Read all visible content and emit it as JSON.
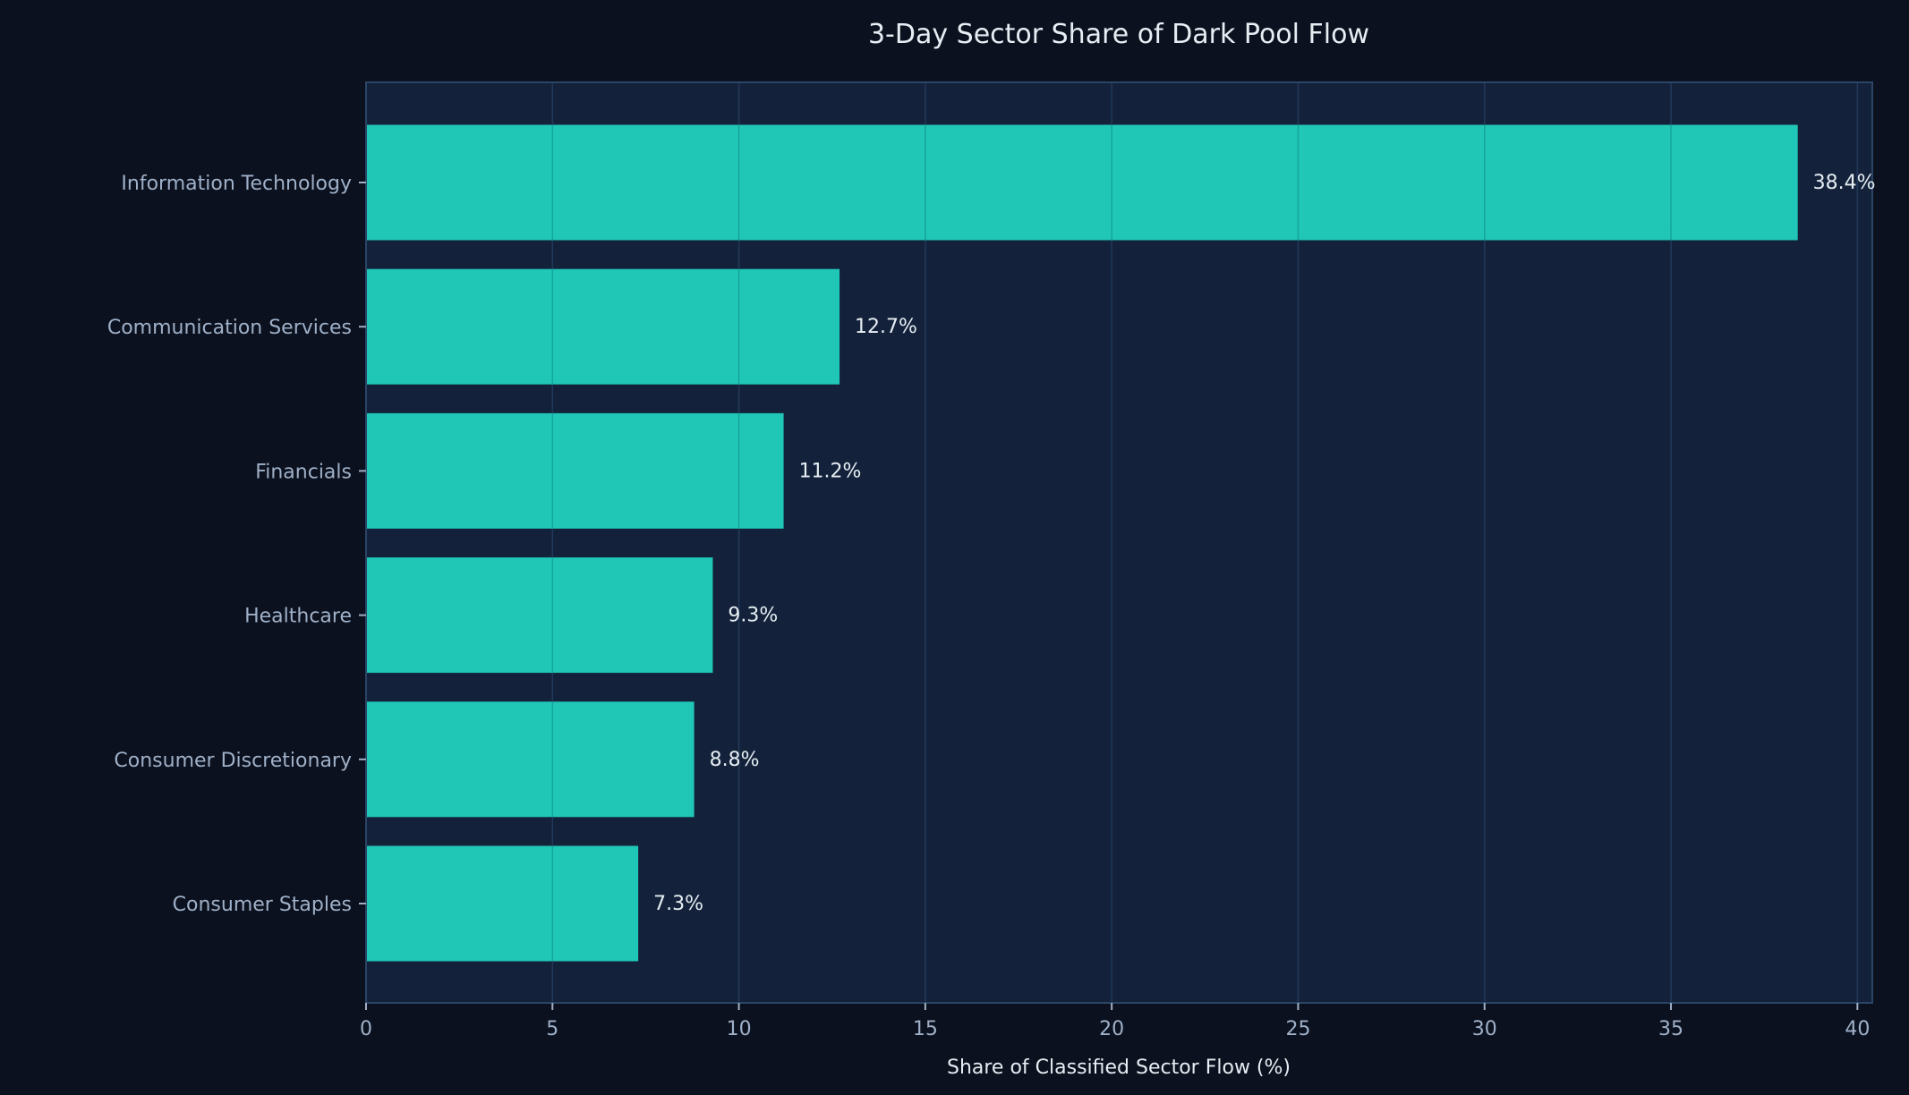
{
  "chart_data": {
    "type": "bar",
    "orientation": "horizontal",
    "title": "3-Day Sector Share of Dark Pool Flow",
    "xlabel": "Share of Classified Sector Flow (%)",
    "ylabel": "",
    "categories": [
      "Information Technology",
      "Communication Services",
      "Financials",
      "Healthcare",
      "Consumer Discretionary",
      "Consumer Staples"
    ],
    "values": [
      38.4,
      12.7,
      11.2,
      9.3,
      8.8,
      7.3
    ],
    "data_labels": [
      "38.4%",
      "12.7%",
      "11.2%",
      "9.3%",
      "8.8%",
      "7.3%"
    ],
    "xlim": [
      0,
      40.4
    ],
    "xticks": [
      0,
      5,
      10,
      15,
      20,
      25,
      30,
      35,
      40
    ],
    "grid": "vertical",
    "legend": "none",
    "colors": {
      "background": "#0b111e",
      "plot": "#13223a",
      "bar": "#20c7b7",
      "grid": "#22395a",
      "text": "#9fb0c8",
      "title": "#e6edf3",
      "label": "#e6edf3"
    }
  }
}
